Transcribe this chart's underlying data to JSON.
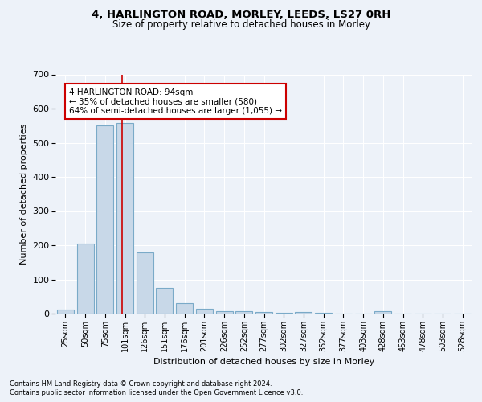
{
  "title1": "4, HARLINGTON ROAD, MORLEY, LEEDS, LS27 0RH",
  "title2": "Size of property relative to detached houses in Morley",
  "xlabel": "Distribution of detached houses by size in Morley",
  "ylabel": "Number of detached properties",
  "categories": [
    "25sqm",
    "50sqm",
    "75sqm",
    "101sqm",
    "126sqm",
    "151sqm",
    "176sqm",
    "201sqm",
    "226sqm",
    "252sqm",
    "277sqm",
    "302sqm",
    "327sqm",
    "352sqm",
    "377sqm",
    "403sqm",
    "428sqm",
    "453sqm",
    "478sqm",
    "503sqm",
    "528sqm"
  ],
  "values": [
    12,
    205,
    551,
    557,
    178,
    76,
    30,
    13,
    7,
    6,
    5,
    2,
    5,
    2,
    0,
    0,
    6,
    0,
    0,
    0,
    0
  ],
  "bar_color": "#c8d8e8",
  "bar_edge_color": "#7aaac8",
  "annotation_text": "4 HARLINGTON ROAD: 94sqm\n← 35% of detached houses are smaller (580)\n64% of semi-detached houses are larger (1,055) →",
  "annotation_box_color": "#ffffff",
  "annotation_box_edge": "#cc0000",
  "vline_color": "#cc0000",
  "ylim": [
    0,
    700
  ],
  "yticks": [
    0,
    100,
    200,
    300,
    400,
    500,
    600,
    700
  ],
  "footer1": "Contains HM Land Registry data © Crown copyright and database right 2024.",
  "footer2": "Contains public sector information licensed under the Open Government Licence v3.0.",
  "bg_color": "#edf2f9",
  "plot_bg_color": "#edf2f9"
}
